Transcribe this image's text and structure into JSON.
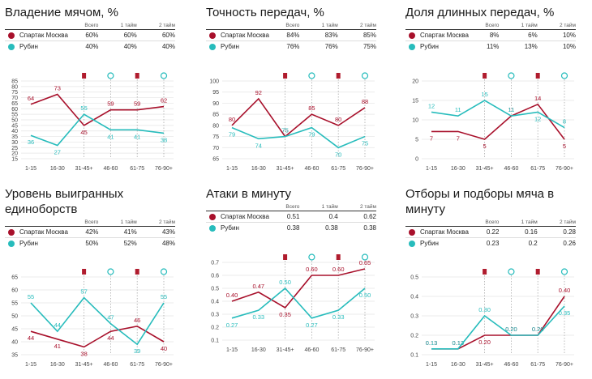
{
  "colors": {
    "spartak": "#a8102b",
    "rubin": "#27bcbc",
    "grid": "#e4e4e4",
    "marker": "#b01c2e"
  },
  "headers": {
    "total": "Всего",
    "half1": "1 тайм",
    "half2": "2 тайм"
  },
  "teams": [
    "Спартак Москва",
    "Рубин"
  ],
  "chart_data": [
    {
      "type": "line",
      "title": "Владение мячом, %",
      "table": [
        [
          "60%",
          "60%",
          "60%"
        ],
        [
          "40%",
          "40%",
          "40%"
        ]
      ],
      "categories": [
        "1-15",
        "16-30",
        "31-45+",
        "46-60",
        "61-75",
        "76-90+"
      ],
      "ylim": [
        15,
        85
      ],
      "yticks": [
        15,
        20,
        25,
        30,
        35,
        40,
        45,
        50,
        55,
        60,
        65,
        70,
        75,
        80,
        85
      ],
      "series": [
        {
          "name": "Спартак Москва",
          "values": [
            64,
            73,
            45,
            59,
            59,
            62
          ],
          "labels": [
            "64",
            "73",
            "45",
            "59",
            "59",
            "62"
          ]
        },
        {
          "name": "Рубин",
          "values": [
            36,
            27,
            55,
            41,
            41,
            38
          ],
          "labels": [
            "36",
            "27",
            "55",
            "41",
            "41",
            "38"
          ]
        }
      ],
      "events": [
        {
          "cat": 2,
          "type": "card"
        },
        {
          "cat": 3,
          "type": "ball"
        },
        {
          "cat": 4,
          "type": "card"
        },
        {
          "cat": 5,
          "type": "ball"
        }
      ]
    },
    {
      "type": "line",
      "title": "Точность передач, %",
      "table": [
        [
          "84%",
          "83%",
          "85%"
        ],
        [
          "76%",
          "76%",
          "75%"
        ]
      ],
      "categories": [
        "1-15",
        "16-30",
        "31-45+",
        "46-60",
        "61-75",
        "76-90+"
      ],
      "ylim": [
        65,
        100
      ],
      "yticks": [
        65,
        70,
        75,
        80,
        85,
        90,
        95,
        100
      ],
      "series": [
        {
          "name": "Спартак Москва",
          "values": [
            80,
            92,
            75,
            85,
            80,
            88
          ],
          "labels": [
            "80",
            "92",
            "75",
            "85",
            "80",
            "88"
          ]
        },
        {
          "name": "Рубин",
          "values": [
            79,
            74,
            75,
            79,
            70,
            75
          ],
          "labels": [
            "79",
            "74",
            "75",
            "79",
            "70",
            "75"
          ]
        }
      ],
      "events": [
        {
          "cat": 2,
          "type": "card"
        },
        {
          "cat": 3,
          "type": "ball"
        },
        {
          "cat": 4,
          "type": "card"
        },
        {
          "cat": 5,
          "type": "ball"
        }
      ]
    },
    {
      "type": "line",
      "title": "Доля длинных передач, %",
      "table": [
        [
          "8%",
          "6%",
          "10%"
        ],
        [
          "11%",
          "13%",
          "10%"
        ]
      ],
      "categories": [
        "1-15",
        "16-30",
        "31-45+",
        "46-60",
        "61-75",
        "76-90+"
      ],
      "ylim": [
        0,
        20
      ],
      "yticks": [
        0,
        5,
        10,
        15,
        20
      ],
      "series": [
        {
          "name": "Спартак Москва",
          "values": [
            7,
            7,
            5,
            11,
            14,
            5
          ],
          "labels": [
            "7",
            "7",
            "5",
            "11",
            "14",
            "5"
          ]
        },
        {
          "name": "Рубин",
          "values": [
            12,
            11,
            15,
            11,
            12,
            8
          ],
          "labels": [
            "12",
            "11",
            "15",
            "11",
            "12",
            "8"
          ]
        }
      ],
      "events": [
        {
          "cat": 2,
          "type": "card"
        },
        {
          "cat": 3,
          "type": "ball"
        },
        {
          "cat": 4,
          "type": "card"
        },
        {
          "cat": 5,
          "type": "ball"
        }
      ]
    },
    {
      "type": "line",
      "title": "Уровень выигранных единоборств",
      "table": [
        [
          "42%",
          "41%",
          "43%"
        ],
        [
          "50%",
          "52%",
          "48%"
        ]
      ],
      "categories": [
        "1-15",
        "16-30",
        "31-45+",
        "46-60",
        "61-75",
        "76-90+"
      ],
      "ylim": [
        35,
        65
      ],
      "yticks": [
        35,
        40,
        45,
        50,
        55,
        60,
        65
      ],
      "series": [
        {
          "name": "Спартак Москва",
          "values": [
            44,
            41,
            38,
            44,
            46,
            40
          ],
          "labels": [
            "44",
            "41",
            "38",
            "44",
            "46",
            "40"
          ]
        },
        {
          "name": "Рубин",
          "values": [
            55,
            44,
            57,
            47,
            39,
            55
          ],
          "labels": [
            "55",
            "44",
            "57",
            "47",
            "39",
            "55"
          ]
        }
      ],
      "events": [
        {
          "cat": 2,
          "type": "card"
        },
        {
          "cat": 3,
          "type": "ball"
        },
        {
          "cat": 4,
          "type": "card"
        },
        {
          "cat": 5,
          "type": "ball"
        }
      ]
    },
    {
      "type": "line",
      "title": "Атаки в минуту",
      "table": [
        [
          "0.51",
          "0.4",
          "0.62"
        ],
        [
          "0.38",
          "0.38",
          "0.38"
        ]
      ],
      "categories": [
        "1-15",
        "16-30",
        "31-45+",
        "46-60",
        "61-75",
        "76-90+"
      ],
      "ylim": [
        0.1,
        0.7
      ],
      "yticks": [
        0.1,
        0.2,
        0.3,
        0.4,
        0.5,
        0.6,
        0.7
      ],
      "series": [
        {
          "name": "Спартак Москва",
          "values": [
            0.4,
            0.47,
            0.35,
            0.6,
            0.6,
            0.65
          ],
          "labels": [
            "0.40",
            "0.47",
            "0.35",
            "0.60",
            "0.60",
            "0.65"
          ]
        },
        {
          "name": "Рубин",
          "values": [
            0.27,
            0.33,
            0.5,
            0.27,
            0.33,
            0.5
          ],
          "labels": [
            "0.27",
            "0.33",
            "0.50",
            "0.27",
            "0.33",
            "0.50"
          ]
        }
      ],
      "events": [
        {
          "cat": 2,
          "type": "card"
        },
        {
          "cat": 3,
          "type": "ball"
        },
        {
          "cat": 4,
          "type": "card"
        },
        {
          "cat": 5,
          "type": "ball"
        }
      ]
    },
    {
      "type": "line",
      "title": "Отборы и подборы мяча в минуту",
      "table": [
        [
          "0.22",
          "0.16",
          "0.28"
        ],
        [
          "0.23",
          "0.2",
          "0.26"
        ]
      ],
      "categories": [
        "1-15",
        "16-30",
        "31-45+",
        "46-60",
        "61-75",
        "76-90+"
      ],
      "ylim": [
        0.1,
        0.5
      ],
      "yticks": [
        0.1,
        0.2,
        0.3,
        0.4,
        0.5
      ],
      "series": [
        {
          "name": "Спартак Москва",
          "values": [
            0.13,
            0.13,
            0.2,
            0.2,
            0.2,
            0.4
          ],
          "labels": [
            "0.13",
            "0.13",
            "0.20",
            "0.20",
            "0.20",
            "0.40"
          ]
        },
        {
          "name": "Рубин",
          "values": [
            0.13,
            0.13,
            0.3,
            0.2,
            0.2,
            0.35
          ],
          "labels": [
            "0.13",
            "0.13",
            "0.30",
            "0.20",
            "0.20",
            "0.35"
          ]
        }
      ],
      "events": [
        {
          "cat": 2,
          "type": "card"
        },
        {
          "cat": 3,
          "type": "ball"
        },
        {
          "cat": 4,
          "type": "card"
        },
        {
          "cat": 5,
          "type": "ball"
        }
      ]
    }
  ]
}
